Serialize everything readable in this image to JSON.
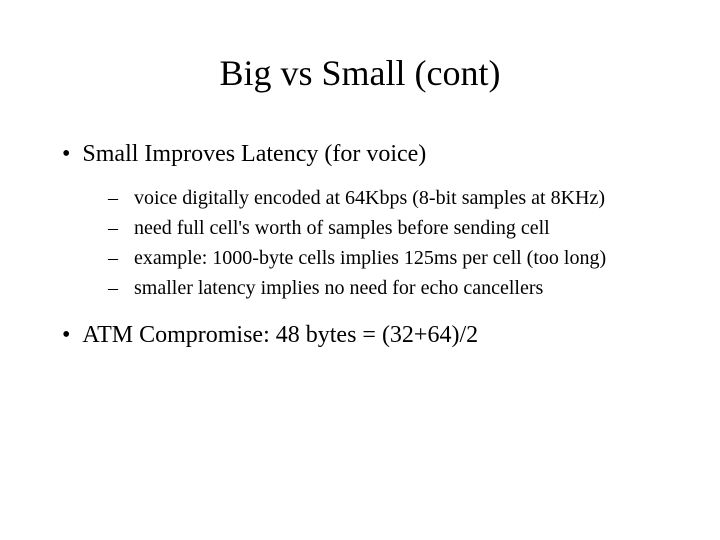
{
  "slide": {
    "title": "Big vs Small (cont)",
    "title_fontsize": 36,
    "background_color": "#ffffff",
    "text_color": "#000000",
    "font_family": "Times New Roman",
    "bullets": [
      {
        "text": "Small Improves Latency (for voice)",
        "fontsize": 24,
        "sub": [
          "voice digitally encoded at 64Kbps (8-bit samples at 8KHz)",
          "need full cell's worth of samples before sending cell",
          "example: 1000-byte cells implies 125ms per cell (too long)",
          "smaller latency implies no need for echo cancellers"
        ],
        "sub_fontsize": 20
      },
      {
        "text": "ATM Compromise: 48 bytes = (32+64)/2",
        "fontsize": 24,
        "sub": []
      }
    ]
  }
}
